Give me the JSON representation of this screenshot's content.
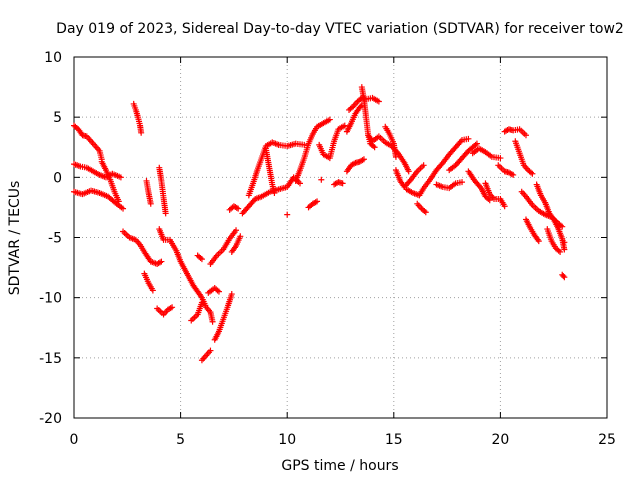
{
  "chart_data": {
    "type": "scatter",
    "title": "Day 019 of 2023, Sidereal Day-to-day VTEC variation (SDTVAR) for receiver tow2",
    "xlabel": "GPS time / hours",
    "ylabel": "SDTVAR / TECUs",
    "xlim": [
      0,
      25
    ],
    "ylim": [
      -20,
      10
    ],
    "xticks": [
      "0",
      "5",
      "10",
      "15",
      "20",
      "25"
    ],
    "yticks": [
      "-20",
      "-15",
      "-10",
      "-5",
      "0",
      "5",
      "10"
    ],
    "grid": true,
    "marker": "+",
    "color": "#ff0000",
    "series": [
      {
        "name": "SDTVAR",
        "tracks": [
          [
            [
              0.0,
              4.3
            ],
            [
              0.2,
              4.0
            ],
            [
              0.4,
              3.5
            ],
            [
              0.6,
              3.4
            ],
            [
              0.8,
              3.0
            ],
            [
              1.0,
              2.6
            ],
            [
              1.2,
              2.2
            ],
            [
              1.3,
              1.5
            ]
          ],
          [
            [
              0.0,
              1.1
            ],
            [
              0.3,
              0.9
            ],
            [
              0.6,
              0.8
            ],
            [
              0.9,
              0.5
            ],
            [
              1.2,
              0.2
            ],
            [
              1.5,
              0.0
            ],
            [
              1.8,
              0.3
            ],
            [
              2.2,
              0.0
            ]
          ],
          [
            [
              0.0,
              -1.2
            ],
            [
              0.4,
              -1.4
            ],
            [
              0.8,
              -1.1
            ],
            [
              1.2,
              -1.3
            ],
            [
              1.6,
              -1.6
            ],
            [
              2.0,
              -2.2
            ],
            [
              2.3,
              -2.6
            ]
          ],
          [
            [
              1.3,
              1.3
            ],
            [
              1.5,
              0.6
            ],
            [
              1.7,
              -0.2
            ],
            [
              1.9,
              -1.2
            ],
            [
              2.1,
              -2.0
            ]
          ],
          [
            [
              2.3,
              -4.5
            ],
            [
              2.6,
              -5.0
            ],
            [
              2.9,
              -5.2
            ],
            [
              3.1,
              -5.6
            ],
            [
              3.3,
              -6.2
            ],
            [
              3.6,
              -7.0
            ],
            [
              3.9,
              -7.2
            ],
            [
              4.1,
              -7.0
            ]
          ],
          [
            [
              2.8,
              6.1
            ],
            [
              2.9,
              5.6
            ],
            [
              3.0,
              5.0
            ],
            [
              3.1,
              4.3
            ],
            [
              3.15,
              3.7
            ]
          ],
          [
            [
              3.4,
              -0.3
            ],
            [
              3.5,
              -1.3
            ],
            [
              3.6,
              -2.2
            ]
          ],
          [
            [
              3.3,
              -8.0
            ],
            [
              3.5,
              -8.8
            ],
            [
              3.7,
              -9.4
            ]
          ],
          [
            [
              3.9,
              -10.9
            ],
            [
              4.2,
              -11.4
            ],
            [
              4.4,
              -11.0
            ],
            [
              4.6,
              -10.8
            ]
          ],
          [
            [
              4.0,
              0.8
            ],
            [
              4.1,
              -0.3
            ],
            [
              4.2,
              -1.7
            ],
            [
              4.3,
              -3.0
            ]
          ],
          [
            [
              4.0,
              -4.3
            ],
            [
              4.2,
              -5.2
            ],
            [
              4.5,
              -5.2
            ],
            [
              4.8,
              -6.1
            ],
            [
              5.0,
              -7.0
            ],
            [
              5.3,
              -8.0
            ],
            [
              5.6,
              -9.0
            ],
            [
              5.8,
              -9.5
            ],
            [
              6.0,
              -10.0
            ],
            [
              6.2,
              -10.8
            ],
            [
              6.4,
              -11.2
            ],
            [
              6.5,
              -12.0
            ]
          ],
          [
            [
              5.5,
              -11.9
            ],
            [
              5.8,
              -11.4
            ],
            [
              6.0,
              -10.4
            ]
          ],
          [
            [
              5.8,
              -6.5
            ],
            [
              6.0,
              -6.8
            ]
          ],
          [
            [
              6.0,
              -15.2
            ],
            [
              6.2,
              -14.8
            ],
            [
              6.4,
              -14.4
            ]
          ],
          [
            [
              6.3,
              -9.6
            ],
            [
              6.6,
              -9.2
            ],
            [
              6.8,
              -9.5
            ]
          ],
          [
            [
              6.6,
              -13.5
            ],
            [
              6.8,
              -12.8
            ],
            [
              7.0,
              -11.8
            ],
            [
              7.2,
              -10.8
            ],
            [
              7.4,
              -9.7
            ]
          ],
          [
            [
              6.4,
              -7.2
            ],
            [
              6.7,
              -6.5
            ],
            [
              7.0,
              -6.0
            ],
            [
              7.3,
              -5.1
            ],
            [
              7.6,
              -4.4
            ]
          ],
          [
            [
              7.3,
              -2.7
            ],
            [
              7.5,
              -2.4
            ],
            [
              7.7,
              -2.6
            ]
          ],
          [
            [
              7.4,
              -6.2
            ],
            [
              7.6,
              -5.7
            ],
            [
              7.8,
              -4.9
            ]
          ],
          [
            [
              7.9,
              -3.0
            ],
            [
              8.2,
              -2.4
            ],
            [
              8.5,
              -1.8
            ],
            [
              8.8,
              -1.6
            ],
            [
              9.2,
              -1.2
            ],
            [
              9.6,
              -1.0
            ],
            [
              10.0,
              -0.8
            ],
            [
              10.3,
              0.0
            ],
            [
              10.6,
              -0.5
            ]
          ],
          [
            [
              8.2,
              -1.5
            ],
            [
              8.4,
              -0.5
            ],
            [
              8.6,
              0.6
            ],
            [
              8.8,
              1.6
            ],
            [
              9.0,
              2.6
            ],
            [
              9.3,
              2.9
            ],
            [
              9.6,
              2.7
            ]
          ],
          [
            [
              9.0,
              2.4
            ],
            [
              9.1,
              1.4
            ],
            [
              9.2,
              0.4
            ],
            [
              9.3,
              -0.6
            ],
            [
              9.4,
              -1.3
            ]
          ],
          [
            [
              9.6,
              2.7
            ],
            [
              10.0,
              2.6
            ],
            [
              10.4,
              2.8
            ],
            [
              10.8,
              2.7
            ]
          ],
          [
            [
              10.0,
              -3.1
            ]
          ],
          [
            [
              10.4,
              -0.3
            ],
            [
              10.6,
              0.6
            ],
            [
              10.8,
              1.6
            ],
            [
              11.0,
              2.8
            ],
            [
              11.2,
              3.6
            ],
            [
              11.4,
              4.2
            ],
            [
              11.7,
              4.5
            ],
            [
              12.0,
              4.8
            ]
          ],
          [
            [
              11.0,
              -2.5
            ],
            [
              11.2,
              -2.2
            ],
            [
              11.4,
              -2.0
            ]
          ],
          [
            [
              11.5,
              2.7
            ],
            [
              11.7,
              1.9
            ],
            [
              12.0,
              1.6
            ],
            [
              12.2,
              3.0
            ],
            [
              12.4,
              4.0
            ],
            [
              12.7,
              4.3
            ]
          ],
          [
            [
              11.6,
              -0.2
            ]
          ],
          [
            [
              12.2,
              -0.6
            ],
            [
              12.4,
              -0.4
            ],
            [
              12.6,
              -0.5
            ]
          ],
          [
            [
              12.8,
              0.5
            ],
            [
              13.0,
              1.0
            ],
            [
              13.2,
              1.2
            ],
            [
              13.4,
              1.3
            ],
            [
              13.6,
              1.5
            ]
          ],
          [
            [
              12.8,
              3.8
            ],
            [
              13.0,
              4.5
            ],
            [
              13.2,
              5.3
            ],
            [
              13.4,
              5.8
            ],
            [
              13.5,
              6.0
            ]
          ],
          [
            [
              12.9,
              5.6
            ],
            [
              13.1,
              5.9
            ],
            [
              13.3,
              6.3
            ],
            [
              13.5,
              6.6
            ],
            [
              13.7,
              6.5
            ],
            [
              14.0,
              6.6
            ],
            [
              14.3,
              6.3
            ]
          ],
          [
            [
              13.5,
              7.5
            ],
            [
              13.6,
              6.5
            ],
            [
              13.7,
              5.0
            ],
            [
              13.8,
              3.5
            ],
            [
              13.9,
              2.8
            ],
            [
              14.1,
              2.5
            ]
          ],
          [
            [
              13.8,
              3.5
            ],
            [
              14.0,
              3.0
            ],
            [
              14.3,
              3.4
            ],
            [
              14.6,
              2.9
            ],
            [
              14.9,
              2.6
            ],
            [
              15.2,
              2.0
            ],
            [
              15.5,
              1.2
            ],
            [
              15.7,
              0.5
            ]
          ],
          [
            [
              14.6,
              4.2
            ],
            [
              14.8,
              3.6
            ],
            [
              15.0,
              2.8
            ],
            [
              15.1,
              1.7
            ]
          ],
          [
            [
              15.1,
              0.6
            ],
            [
              15.3,
              -0.3
            ],
            [
              15.5,
              -0.8
            ],
            [
              15.8,
              -0.2
            ],
            [
              16.1,
              0.5
            ],
            [
              16.4,
              1.0
            ]
          ],
          [
            [
              15.6,
              -1.0
            ],
            [
              15.9,
              -1.3
            ],
            [
              16.2,
              -1.5
            ],
            [
              16.4,
              -0.9
            ],
            [
              16.7,
              -0.2
            ],
            [
              17.0,
              0.6
            ],
            [
              17.3,
              1.2
            ],
            [
              17.6,
              1.9
            ],
            [
              17.9,
              2.5
            ],
            [
              18.2,
              3.1
            ],
            [
              18.5,
              3.2
            ]
          ],
          [
            [
              16.1,
              -2.2
            ],
            [
              16.3,
              -2.6
            ],
            [
              16.5,
              -2.9
            ]
          ],
          [
            [
              17.0,
              -0.6
            ],
            [
              17.3,
              -0.8
            ],
            [
              17.6,
              -0.9
            ],
            [
              17.9,
              -0.5
            ],
            [
              18.2,
              -0.4
            ]
          ],
          [
            [
              17.6,
              0.6
            ],
            [
              17.9,
              1.0
            ],
            [
              18.2,
              1.6
            ],
            [
              18.5,
              2.2
            ],
            [
              18.9,
              2.8
            ]
          ],
          [
            [
              18.5,
              0.5
            ],
            [
              18.8,
              -0.3
            ],
            [
              19.1,
              -0.9
            ],
            [
              19.3,
              -1.6
            ],
            [
              19.5,
              -1.9
            ]
          ],
          [
            [
              18.7,
              2.0
            ],
            [
              19.0,
              2.4
            ],
            [
              19.3,
              2.1
            ],
            [
              19.6,
              1.7
            ],
            [
              20.0,
              1.6
            ]
          ],
          [
            [
              19.3,
              -0.5
            ],
            [
              19.5,
              -1.4
            ],
            [
              19.7,
              -1.8
            ],
            [
              20.0,
              -1.8
            ],
            [
              20.2,
              -2.4
            ]
          ],
          [
            [
              19.9,
              1.0
            ],
            [
              20.2,
              0.5
            ],
            [
              20.4,
              0.4
            ],
            [
              20.6,
              0.2
            ]
          ],
          [
            [
              20.2,
              3.8
            ],
            [
              20.4,
              4.0
            ],
            [
              20.6,
              3.9
            ],
            [
              20.9,
              4.0
            ],
            [
              21.2,
              3.5
            ]
          ],
          [
            [
              20.7,
              3.0
            ],
            [
              20.9,
              2.0
            ],
            [
              21.1,
              1.0
            ],
            [
              21.3,
              0.6
            ],
            [
              21.5,
              0.3
            ]
          ],
          [
            [
              21.0,
              -1.2
            ],
            [
              21.2,
              -1.6
            ],
            [
              21.5,
              -2.3
            ],
            [
              21.8,
              -2.8
            ],
            [
              22.1,
              -3.1
            ],
            [
              22.4,
              -3.3
            ],
            [
              22.7,
              -3.8
            ],
            [
              22.9,
              -4.1
            ]
          ],
          [
            [
              21.2,
              -3.5
            ],
            [
              21.4,
              -4.2
            ],
            [
              21.6,
              -4.8
            ],
            [
              21.8,
              -5.3
            ]
          ],
          [
            [
              21.7,
              -0.6
            ],
            [
              21.9,
              -1.5
            ],
            [
              22.1,
              -2.1
            ],
            [
              22.3,
              -3.0
            ],
            [
              22.5,
              -3.5
            ],
            [
              22.7,
              -4.2
            ],
            [
              22.9,
              -5.1
            ],
            [
              23.0,
              -6.0
            ]
          ],
          [
            [
              22.2,
              -4.3
            ],
            [
              22.4,
              -5.3
            ],
            [
              22.6,
              -5.9
            ],
            [
              22.8,
              -6.2
            ]
          ],
          [
            [
              22.9,
              -8.1
            ],
            [
              23.0,
              -8.3
            ]
          ],
          [
            [
              23.0,
              -5.4
            ]
          ]
        ]
      }
    ]
  }
}
